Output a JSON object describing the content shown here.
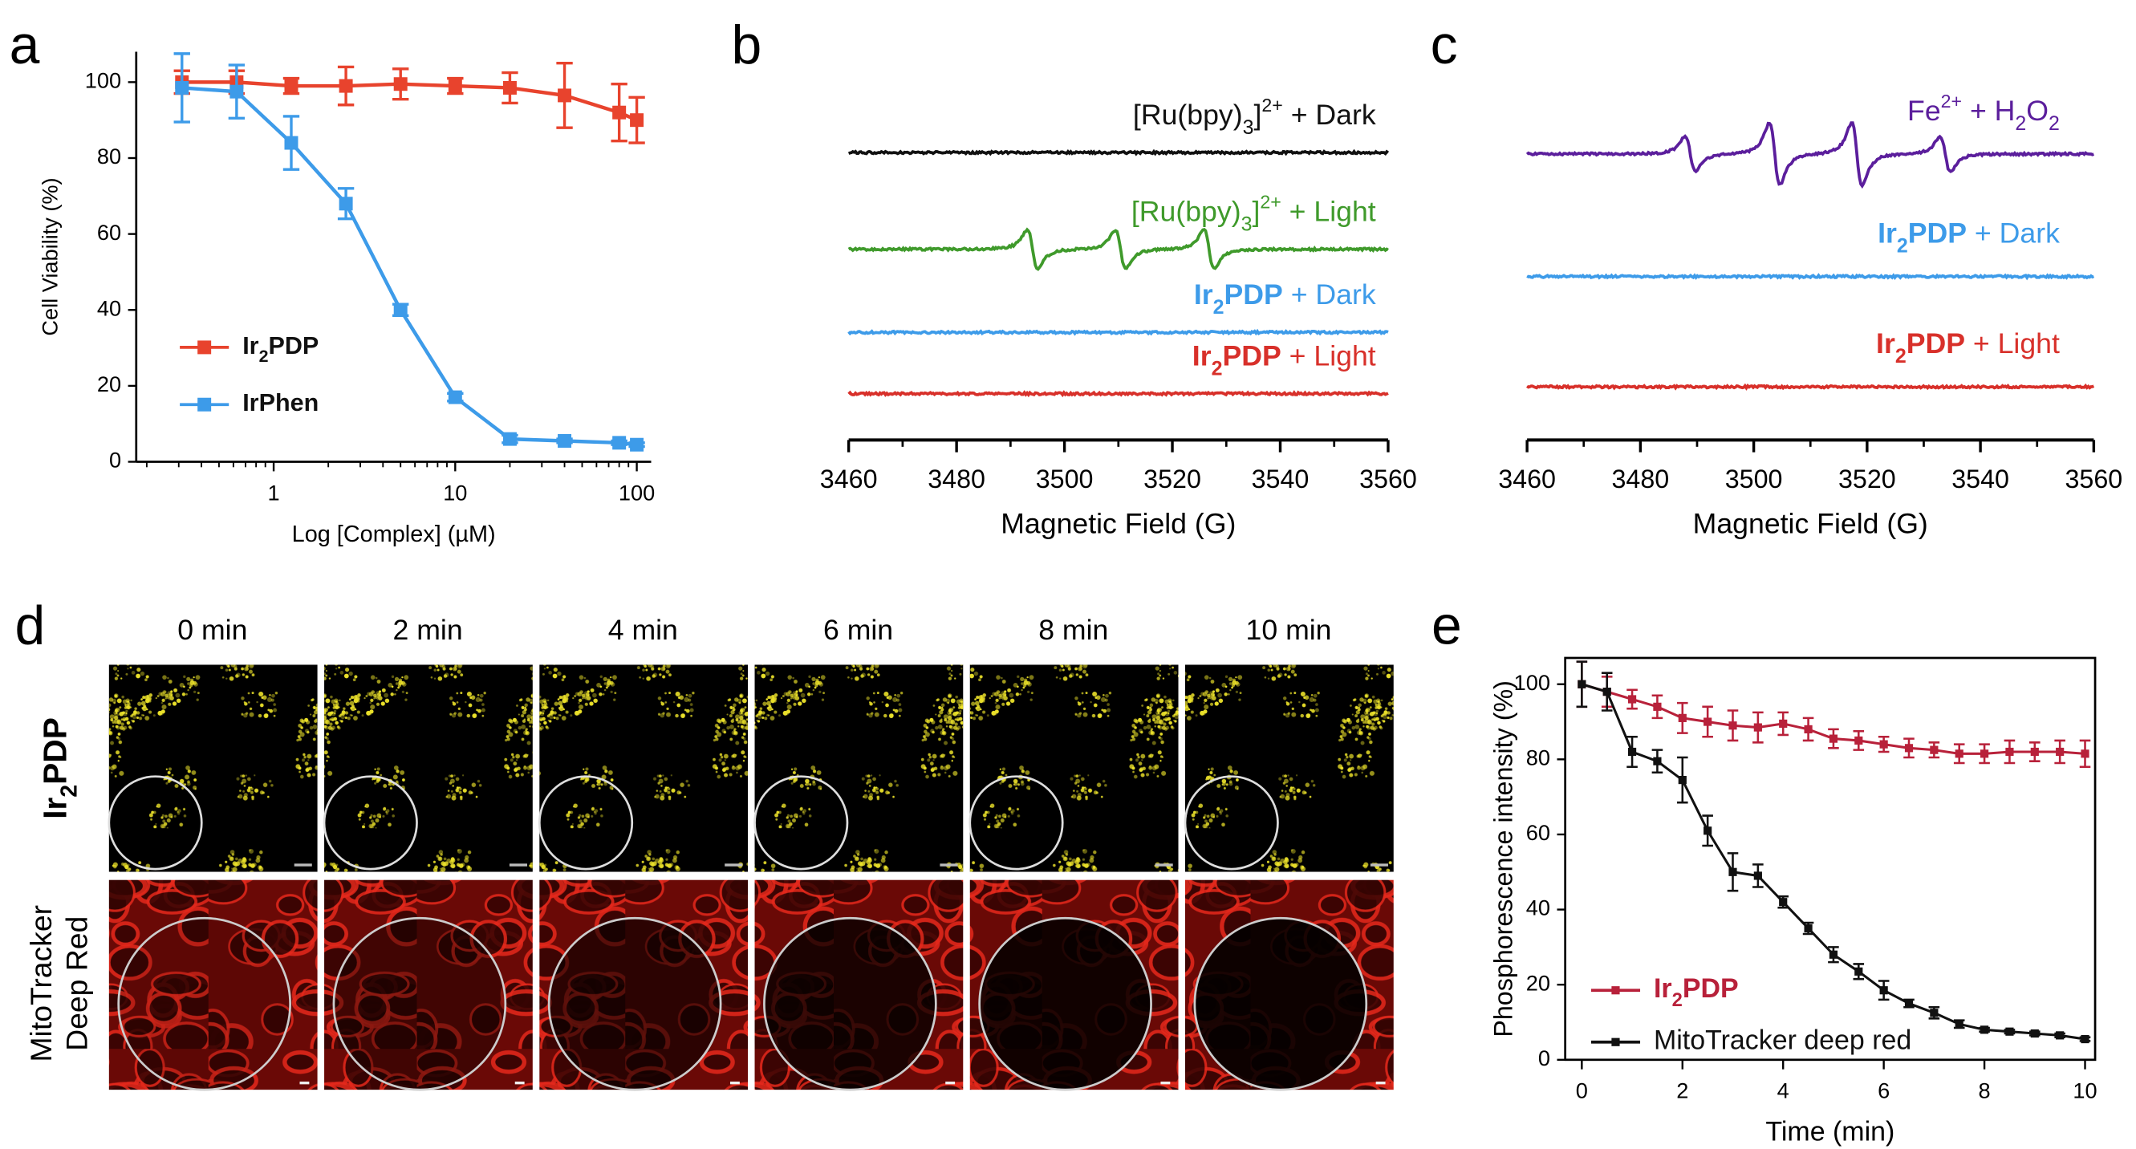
{
  "chart_data": [
    {
      "type": "line",
      "panel_label": "a",
      "xscale": "log",
      "xlabel": "Log [Complex] (µM)",
      "ylabel": "Cell Viability (%)",
      "x": [
        0.3125,
        0.625,
        1.25,
        2.5,
        5,
        10,
        20,
        40,
        80,
        100
      ],
      "xlim": [
        0.175,
        120
      ],
      "xticks": [
        1,
        10,
        100
      ],
      "ylim": [
        0,
        108
      ],
      "yticks": [
        0,
        20,
        40,
        60,
        80,
        100
      ],
      "legend": "lower left",
      "frame": false,
      "series": [
        {
          "name": "Ir2PDP",
          "color": "#e8432d",
          "values": [
            100,
            100,
            99,
            99,
            99.5,
            99,
            98.5,
            96.5,
            92,
            90
          ],
          "errors": [
            3,
            3,
            2,
            5,
            4,
            2,
            4,
            8.5,
            7.5,
            6
          ]
        },
        {
          "name": "IrPhen",
          "color": "#3d9be9",
          "values": [
            98.5,
            97.5,
            84,
            68,
            40,
            17,
            6,
            5.5,
            5,
            4.5
          ],
          "errors": [
            9,
            7,
            7,
            4,
            1.5,
            1,
            1,
            0.5,
            0.5,
            0.5
          ]
        }
      ]
    },
    {
      "type": "spectrum",
      "panel_label": "b",
      "xlabel": "Magnetic Field (G)",
      "xlim": [
        3460,
        3560
      ],
      "xticks": [
        3460,
        3480,
        3500,
        3520,
        3540,
        3560
      ],
      "series": [
        {
          "name": "[Ru(bpy)3]2+ + Dark",
          "color": "#111111"
        },
        {
          "name": "[Ru(bpy)3]2+ + Light",
          "color": "#3f9a2b",
          "peaks": [
            3494.1,
            3510.4,
            3526.8
          ],
          "peak_heights": [
            1,
            1,
            1
          ]
        },
        {
          "name": "Ir2PDP + Dark",
          "color": "#3d9be9"
        },
        {
          "name": "Ir2PDP + Light",
          "color": "#d8302a"
        }
      ]
    },
    {
      "type": "spectrum",
      "panel_label": "c",
      "xlabel": "Magnetic Field (G)",
      "xlim": [
        3460,
        3560
      ],
      "xticks": [
        3460,
        3480,
        3500,
        3520,
        3540,
        3560
      ],
      "series": [
        {
          "name": "Fe2+ + H2O2",
          "color": "#5b1e9c",
          "peaks": [
            3488.8,
            3503.7,
            3518.2,
            3533.8
          ],
          "peak_heights": [
            0.9,
            1.6,
            1.6,
            0.9
          ]
        },
        {
          "name": "Ir2PDP + Dark",
          "color": "#3d9be9"
        },
        {
          "name": "Ir2PDP + Light",
          "color": "#d8302a"
        }
      ]
    },
    {
      "type": "line",
      "panel_label": "e",
      "xscale": "linear",
      "xlabel": "Time (min)",
      "ylabel": "Phosphorescence intensity (%)",
      "x": [
        0,
        0.5,
        1,
        1.5,
        2,
        2.5,
        3,
        3.5,
        4,
        4.5,
        5,
        5.5,
        6,
        6.5,
        7,
        7.5,
        8,
        8.5,
        9,
        9.5,
        10
      ],
      "xlim": [
        -0.33,
        10.2
      ],
      "xticks": [
        0,
        2,
        4,
        6,
        8,
        10
      ],
      "ylim": [
        0,
        107
      ],
      "yticks": [
        0,
        20,
        40,
        60,
        80,
        100
      ],
      "legend": "lower left",
      "frame": true,
      "series": [
        {
          "name": "Ir2PDP",
          "color": "#b8213a",
          "values": [
            100,
            98,
            96,
            94,
            91,
            90,
            89,
            88.5,
            89.5,
            88,
            85.5,
            85,
            84,
            83,
            82.5,
            81.5,
            81.5,
            82,
            82,
            82,
            81.5
          ],
          "errors": [
            6,
            4,
            2.5,
            3,
            4,
            4,
            4,
            4,
            3,
            3,
            2.5,
            2.5,
            2,
            2.5,
            2,
            2.5,
            2.5,
            3,
            2.5,
            3,
            3.5
          ]
        },
        {
          "name": "MitoTracker deep red",
          "color": "#111111",
          "values": [
            100,
            98,
            82,
            79.5,
            74.5,
            61,
            50,
            49,
            42,
            35,
            28,
            23.5,
            18.5,
            15,
            12.5,
            9.5,
            8,
            7.5,
            7,
            6.5,
            5.5
          ],
          "errors": [
            6,
            5,
            4,
            3,
            6,
            4,
            5,
            3,
            1.5,
            1.5,
            2,
            2,
            2.5,
            1,
            1.5,
            1,
            0.5,
            0.5,
            0.5,
            0.5,
            0.5
          ]
        }
      ]
    }
  ],
  "panel_d": {
    "label": "d",
    "times": [
      "0 min",
      "2 min",
      "4 min",
      "6 min",
      "8 min",
      "10 min"
    ],
    "rows": [
      [
        "Ir2PDP"
      ],
      [
        "MitoTracker",
        "Deep Red"
      ]
    ]
  }
}
